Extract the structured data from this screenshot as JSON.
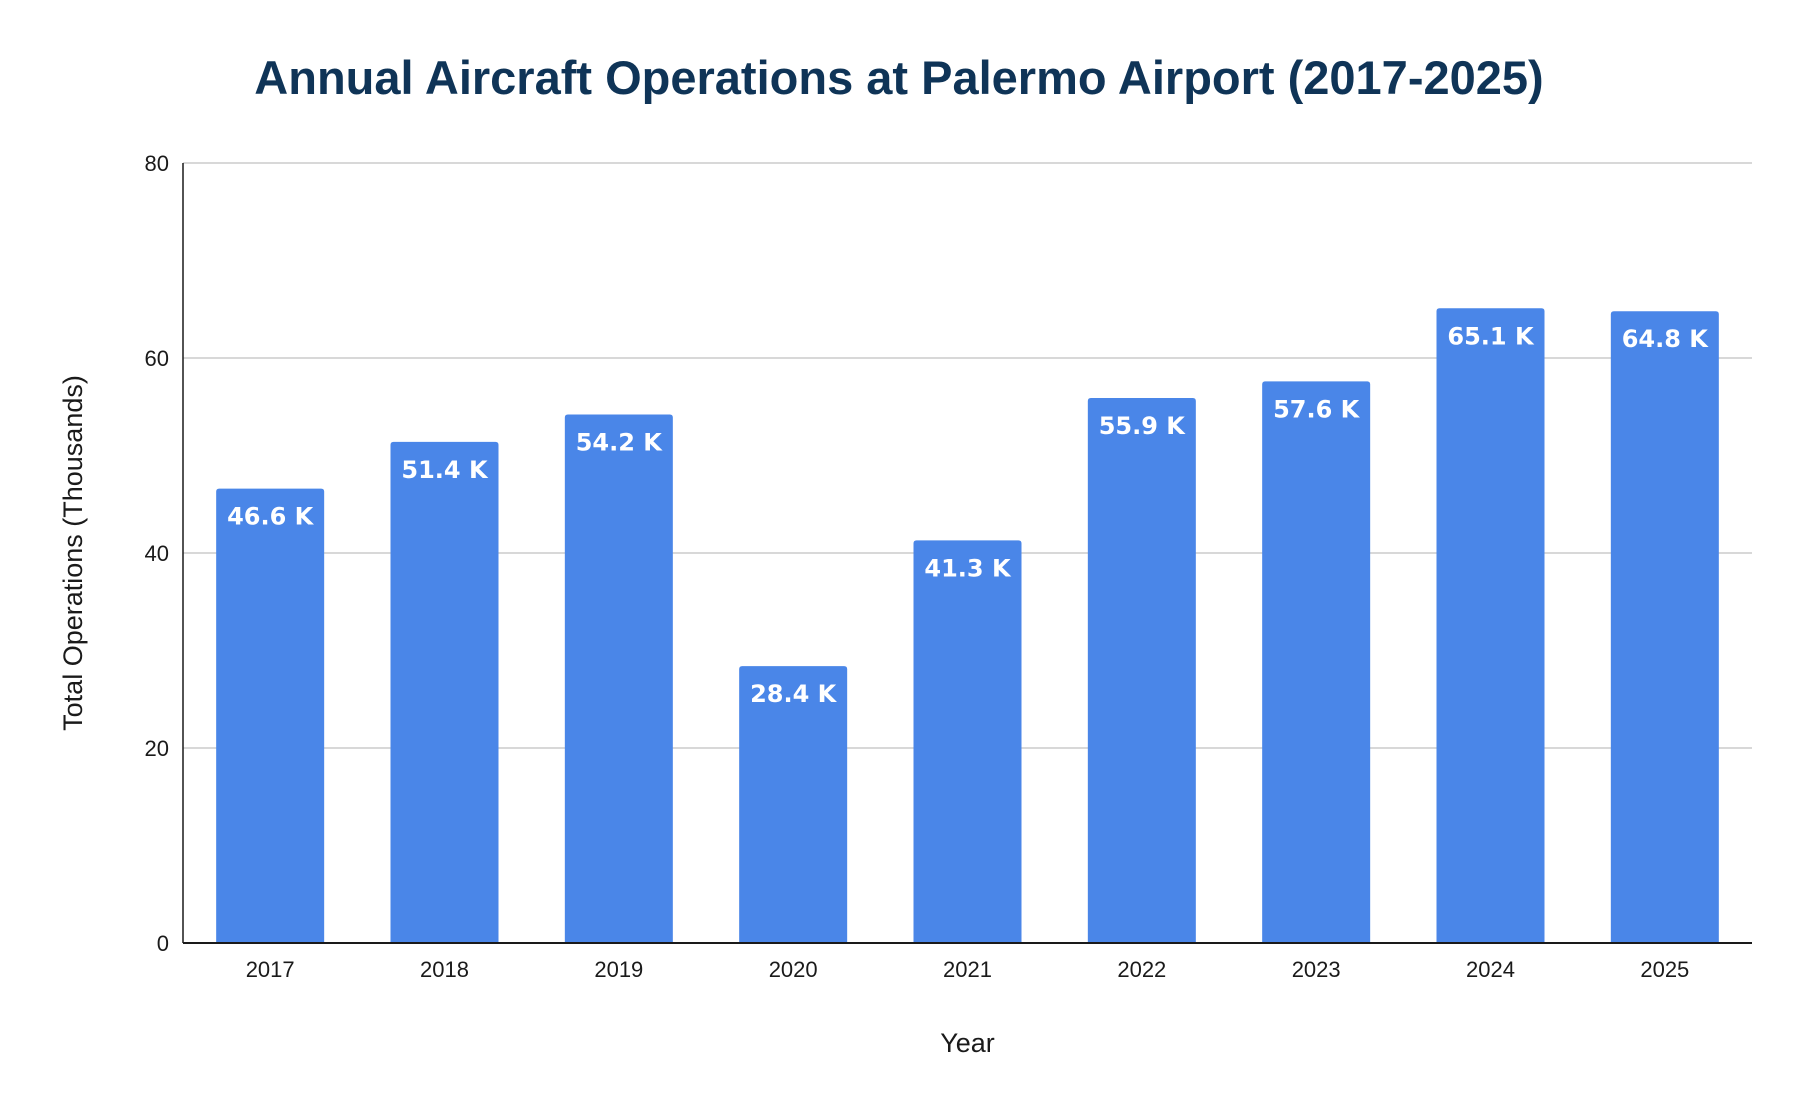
{
  "chart_data": {
    "type": "bar",
    "title": "Annual Aircraft Operations at Palermo Airport (2017-2025)",
    "xlabel": "Year",
    "ylabel": "Total Operations (Thousands)",
    "categories": [
      "2017",
      "2018",
      "2019",
      "2020",
      "2021",
      "2022",
      "2023",
      "2024",
      "2025"
    ],
    "values": [
      46.6,
      51.4,
      54.2,
      28.4,
      41.3,
      55.9,
      57.6,
      65.1,
      64.8
    ],
    "data_labels": [
      "46.6 K",
      "51.4 K",
      "54.2 K",
      "28.4 K",
      "41.3 K",
      "55.9 K",
      "57.6 K",
      "65.1 K",
      "64.8 K"
    ],
    "ylim": [
      0,
      80
    ],
    "yticks": [
      "0",
      "20",
      "40",
      "60",
      "80"
    ],
    "grid": true,
    "legend": "none",
    "colors": {
      "bar": "#4a86e8",
      "title": "#0f3457",
      "grid": "#cccccc",
      "axis": "#1a1a1a"
    }
  }
}
